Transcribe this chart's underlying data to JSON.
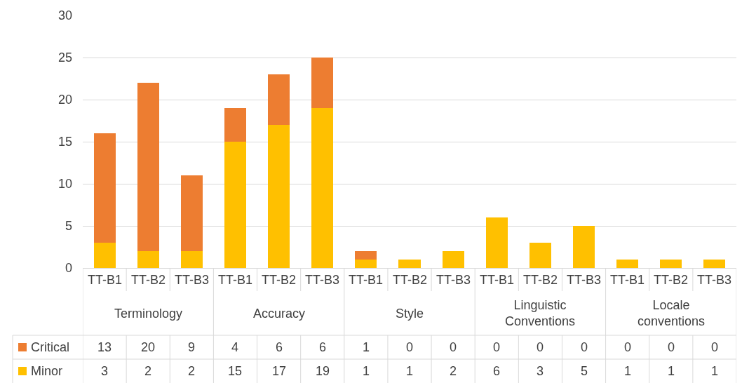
{
  "chart_data": {
    "type": "bar",
    "stacked": true,
    "categories": [
      "TT-B1",
      "TT-B2",
      "TT-B3",
      "TT-B1",
      "TT-B2",
      "TT-B3",
      "TT-B1",
      "TT-B2",
      "TT-B3",
      "TT-B1",
      "TT-B2",
      "TT-B3",
      "TT-B1",
      "TT-B2",
      "TT-B3"
    ],
    "annotations": [
      "Terminology",
      "Accuracy",
      "Style",
      "Linguistic Conventions",
      "Locale conventions"
    ],
    "series": [
      {
        "name": "Minor",
        "color": "#ffc000",
        "values": [
          3,
          2,
          2,
          15,
          17,
          19,
          1,
          1,
          2,
          6,
          3,
          5,
          1,
          1,
          1
        ]
      },
      {
        "name": "Critical",
        "color": "#ed7d31",
        "values": [
          13,
          20,
          9,
          4,
          6,
          6,
          1,
          0,
          0,
          0,
          0,
          0,
          0,
          0,
          0
        ]
      }
    ],
    "ylim": [
      0,
      30
    ],
    "yticks": [
      0,
      5,
      10,
      15,
      20,
      25,
      30
    ],
    "grid": "y",
    "data_labels": true,
    "legend": "bottom"
  }
}
